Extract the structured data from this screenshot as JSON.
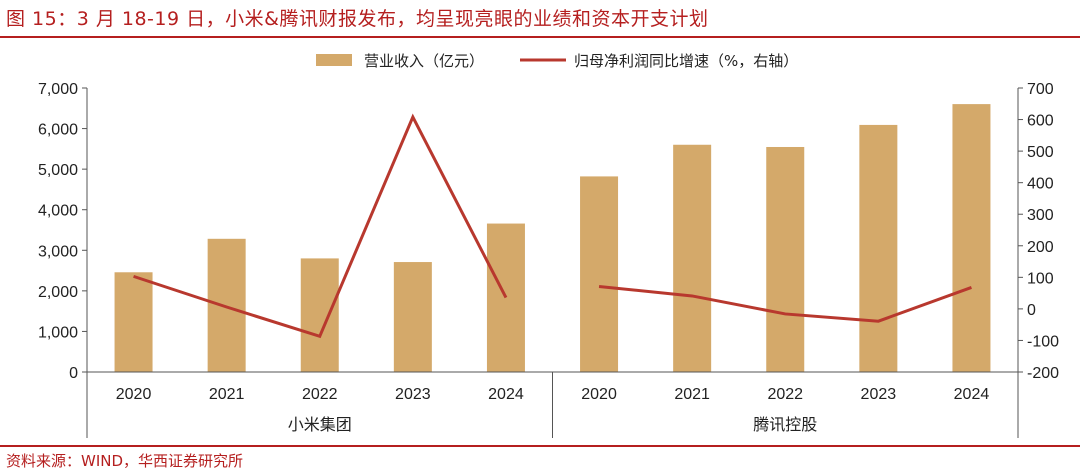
{
  "figure": {
    "title": "图 15：3 月 18-19 日，小米&腾讯财报发布，均呈现亮眼的业绩和资本开支计划",
    "source": "资料来源：WIND，华西证券研究所"
  },
  "chart_data": {
    "type": "bar",
    "categories": [
      "2020",
      "2021",
      "2022",
      "2023",
      "2024",
      "2020",
      "2021",
      "2022",
      "2023",
      "2024"
    ],
    "groups": [
      {
        "name": "小米集团",
        "start": 0,
        "end": 4
      },
      {
        "name": "腾讯控股",
        "start": 5,
        "end": 9
      }
    ],
    "series": [
      {
        "name": "营业收入（亿元）",
        "type": "bar",
        "axis": "left",
        "color": "#D4A96A",
        "values": [
          2458,
          3283,
          2800,
          2710,
          3659,
          4821,
          5601,
          5546,
          6090,
          6603
        ]
      },
      {
        "name": "归母净利润同比增速（%，右轴）",
        "type": "line",
        "axis": "right",
        "color": "#B8382E",
        "groups_separate": true,
        "values": [
          103,
          6,
          -87,
          608,
          36,
          71,
          41,
          -16,
          -39,
          68
        ]
      }
    ],
    "ylim": [
      0,
      7000
    ],
    "yticks": [
      0,
      1000,
      2000,
      3000,
      4000,
      5000,
      6000,
      7000
    ],
    "ytick_labels": [
      "0",
      "1,000",
      "2,000",
      "3,000",
      "4,000",
      "5,000",
      "6,000",
      "7,000"
    ],
    "y2lim": [
      -200,
      700
    ],
    "y2ticks": [
      -200,
      -100,
      0,
      100,
      200,
      300,
      400,
      500,
      600,
      700
    ],
    "y2tick_labels": [
      "-200",
      "-100",
      "0",
      "100",
      "200",
      "300",
      "400",
      "500",
      "600",
      "700"
    ],
    "legend": "top-center",
    "grid": false
  }
}
